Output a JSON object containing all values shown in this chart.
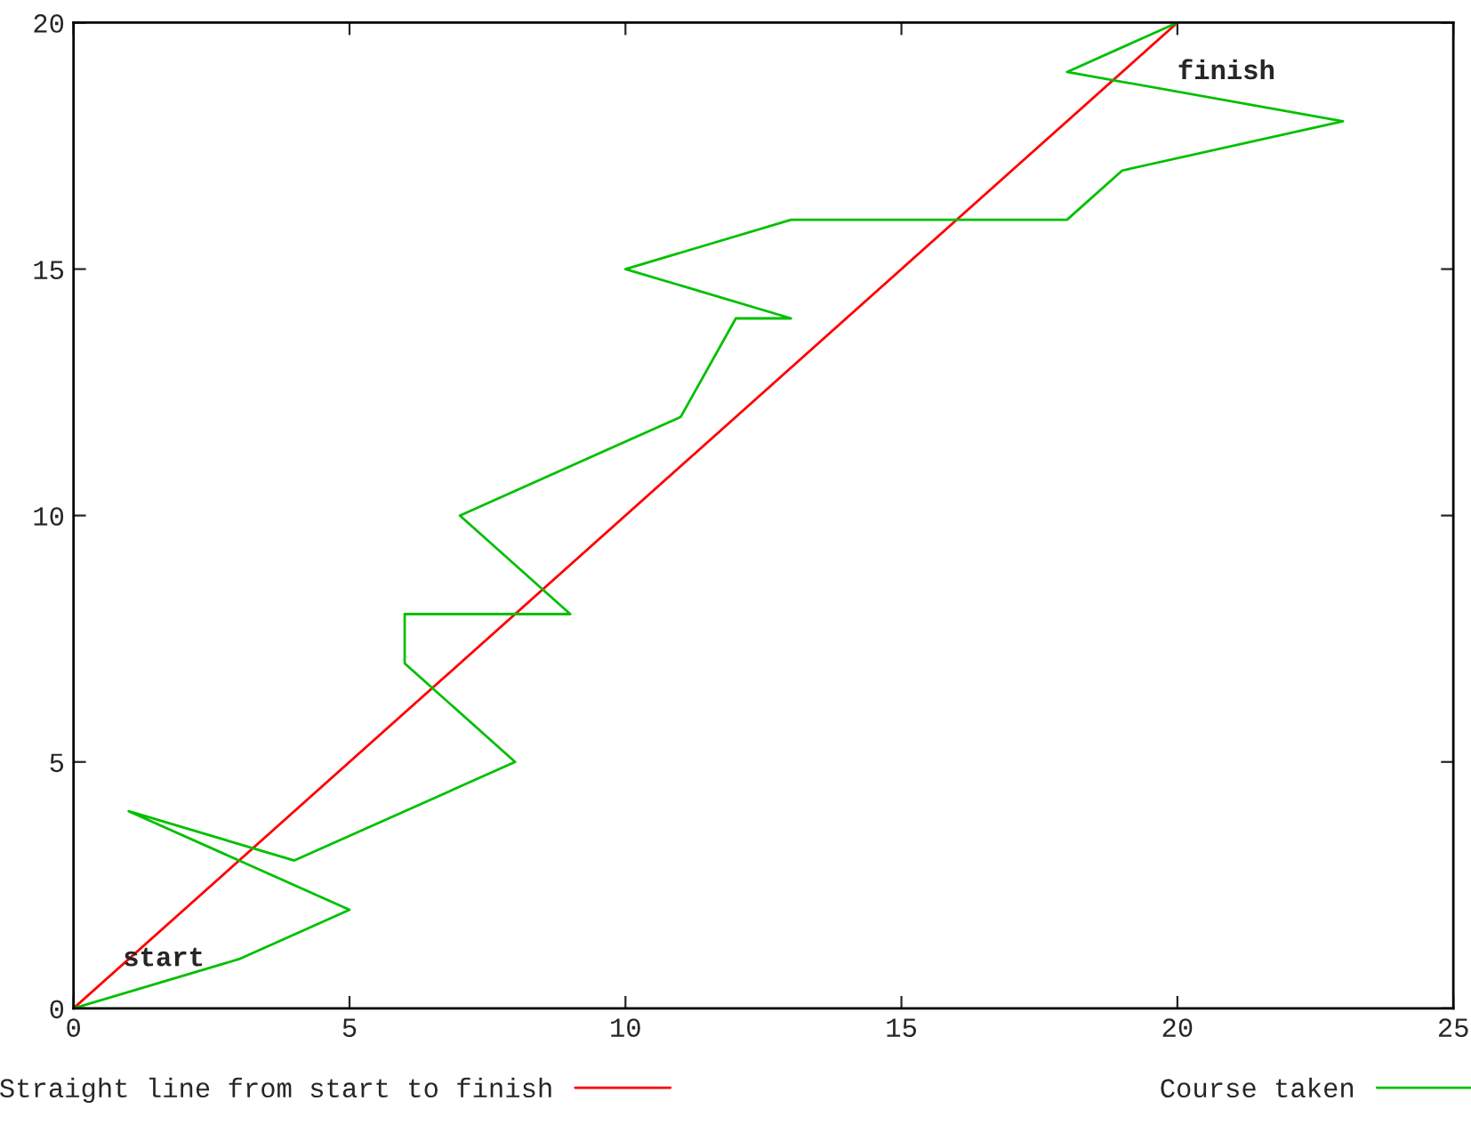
{
  "chart_data": {
    "type": "line",
    "xlim": [
      0,
      25
    ],
    "ylim": [
      0,
      20
    ],
    "xticks": [
      0,
      5,
      10,
      15,
      20,
      25
    ],
    "yticks": [
      0,
      5,
      10,
      15,
      20
    ],
    "series": [
      {
        "name": "Straight line from start to finish",
        "color": "#ff0000",
        "x": [
          0,
          20
        ],
        "values": [
          0,
          20
        ]
      },
      {
        "name": "Course taken",
        "color": "#00c000",
        "x": [
          0,
          3,
          5,
          1,
          4,
          8,
          6,
          6,
          9,
          7,
          11,
          12,
          13,
          10,
          13,
          18,
          19,
          23,
          18,
          20
        ],
        "values": [
          0,
          1,
          2,
          4,
          3,
          5,
          7,
          8,
          8,
          10,
          12,
          14,
          14,
          15,
          16,
          16,
          17,
          18,
          19,
          20
        ]
      }
    ],
    "annotations": [
      {
        "text": "start",
        "x": 0,
        "y": 0
      },
      {
        "text": "finish",
        "x": 20,
        "y": 20
      }
    ],
    "legend": "bottom",
    "grid": false,
    "marker": "none",
    "line_style": "solid"
  }
}
